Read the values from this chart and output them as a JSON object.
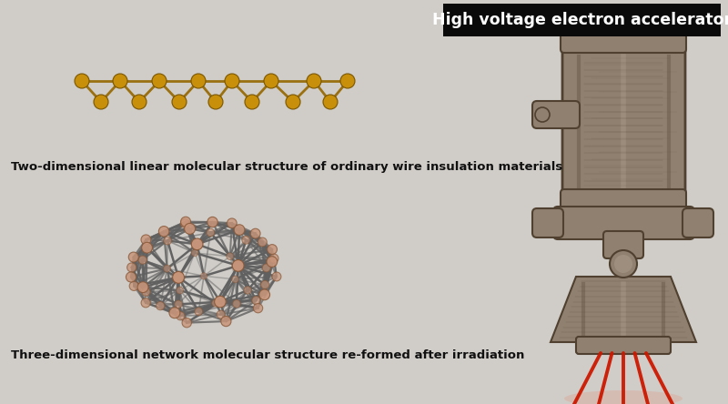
{
  "bg_color": "#d0cdc8",
  "title_box_color": "#0a0a0a",
  "title_text": "High voltage electron accelerator",
  "title_text_color": "#ffffff",
  "title_fontsize": 12.5,
  "label1": "Two-dimensional linear molecular structure of ordinary wire insulation materials",
  "label2": "Three-dimensional network molecular structure re-formed after irradiation",
  "label_fontsize": 9.5,
  "atom_color_linear": "#c8900a",
  "atom_edge_linear": "#7a5500",
  "bond_color_linear": "#9a7010",
  "atom_color_network": "#c8957a",
  "atom_edge_network": "#8a5a3a",
  "bond_color_network": "#606060",
  "acc_body": "#908070",
  "acc_dark": "#504030",
  "acc_light": "#c0b0a0",
  "beam_color": "#cc1800",
  "figsize": [
    8.0,
    4.44
  ],
  "dpi": 100
}
